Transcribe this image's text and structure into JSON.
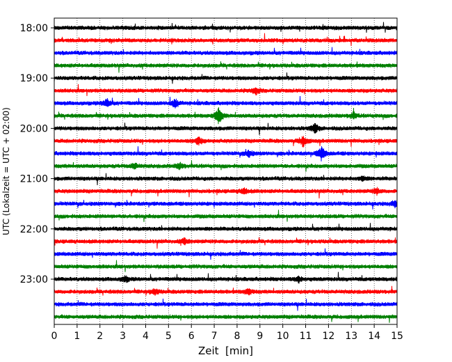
{
  "chart_data": {
    "type": "line",
    "title": "",
    "xlabel": "Zeit  [min]",
    "ylabel": "UTC (Lokalzeit = UTC + 02:00)",
    "xlim": [
      0,
      15
    ],
    "x_ticks": [
      0,
      1,
      2,
      3,
      4,
      5,
      6,
      7,
      8,
      9,
      10,
      11,
      12,
      13,
      14,
      15
    ],
    "y_tick_labels": [
      "18:00",
      "19:00",
      "20:00",
      "21:00",
      "22:00",
      "23:00"
    ],
    "y_tick_rows": [
      0,
      4,
      8,
      12,
      16,
      20
    ],
    "grid": "vertical dotted at each minute",
    "legend": "none",
    "row_interval_minutes": 15,
    "start_time": "18:00",
    "color_cycle": [
      "#000000",
      "#ff0000",
      "#0000ff",
      "#008000"
    ],
    "series": [
      {
        "start": "18:00",
        "color": "#000000",
        "events": []
      },
      {
        "start": "18:15",
        "color": "#ff0000",
        "events": []
      },
      {
        "start": "18:30",
        "color": "#0000ff",
        "events": []
      },
      {
        "start": "18:45",
        "color": "#008000",
        "events": []
      },
      {
        "start": "19:00",
        "color": "#000000",
        "events": []
      },
      {
        "start": "19:15",
        "color": "#ff0000",
        "events": [
          {
            "t": 8.8,
            "amp": 0.5
          }
        ]
      },
      {
        "start": "19:30",
        "color": "#0000ff",
        "events": [
          {
            "t": 2.3,
            "amp": 0.6
          },
          {
            "t": 5.3,
            "amp": 0.6
          }
        ]
      },
      {
        "start": "19:45",
        "color": "#008000",
        "events": [
          {
            "t": 7.2,
            "amp": 1.2
          },
          {
            "t": 13.1,
            "amp": 0.4
          }
        ]
      },
      {
        "start": "20:00",
        "color": "#000000",
        "events": [
          {
            "t": 11.4,
            "amp": 0.7
          }
        ]
      },
      {
        "start": "20:15",
        "color": "#ff0000",
        "events": [
          {
            "t": 6.3,
            "amp": 0.6
          },
          {
            "t": 10.9,
            "amp": 0.8
          }
        ]
      },
      {
        "start": "20:30",
        "color": "#0000ff",
        "events": [
          {
            "t": 8.5,
            "amp": 0.5
          },
          {
            "t": 11.7,
            "amp": 1.0
          }
        ]
      },
      {
        "start": "20:45",
        "color": "#008000",
        "events": [
          {
            "t": 3.5,
            "amp": 0.4
          },
          {
            "t": 5.5,
            "amp": 0.4
          }
        ]
      },
      {
        "start": "21:00",
        "color": "#000000",
        "events": [
          {
            "t": 13.5,
            "amp": 0.3
          }
        ]
      },
      {
        "start": "21:15",
        "color": "#ff0000",
        "events": [
          {
            "t": 8.3,
            "amp": 0.4
          },
          {
            "t": 14.1,
            "amp": 0.4
          }
        ]
      },
      {
        "start": "21:30",
        "color": "#0000ff",
        "events": [
          {
            "t": 14.9,
            "amp": 0.4
          }
        ]
      },
      {
        "start": "21:45",
        "color": "#008000",
        "events": []
      },
      {
        "start": "22:00",
        "color": "#000000",
        "events": []
      },
      {
        "start": "22:15",
        "color": "#ff0000",
        "events": [
          {
            "t": 5.7,
            "amp": 0.4
          }
        ]
      },
      {
        "start": "22:30",
        "color": "#0000ff",
        "events": []
      },
      {
        "start": "22:45",
        "color": "#008000",
        "events": []
      },
      {
        "start": "23:00",
        "color": "#000000",
        "events": [
          {
            "t": 3.1,
            "amp": 0.4
          },
          {
            "t": 10.7,
            "amp": 0.4
          }
        ]
      },
      {
        "start": "23:15",
        "color": "#ff0000",
        "events": [
          {
            "t": 4.4,
            "amp": 0.4
          },
          {
            "t": 8.5,
            "amp": 0.4
          }
        ]
      },
      {
        "start": "23:30",
        "color": "#0000ff",
        "events": []
      },
      {
        "start": "23:45",
        "color": "#008000",
        "events": []
      }
    ]
  }
}
